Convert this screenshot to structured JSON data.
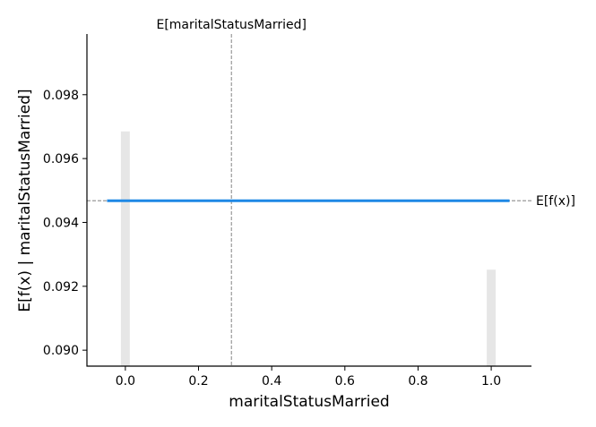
{
  "chart_data": {
    "type": "line",
    "title": "",
    "xlabel": "maritalStatusMarried",
    "ylabel": "E[f(x) | maritalStatusMarried]",
    "xlim": [
      -0.105,
      1.11
    ],
    "ylim": [
      0.0895,
      0.0999
    ],
    "x_ticks": [
      0.0,
      0.2,
      0.4,
      0.6,
      0.8,
      1.0
    ],
    "x_tick_labels": [
      "0.0",
      "0.2",
      "0.4",
      "0.6",
      "0.8",
      "1.0"
    ],
    "y_ticks": [
      0.09,
      0.092,
      0.094,
      0.096,
      0.098
    ],
    "y_tick_labels": [
      "0.090",
      "0.092",
      "0.094",
      "0.096",
      "0.098"
    ],
    "grid": false,
    "legend": "none",
    "series": [
      {
        "x": [
          -0.05,
          1.05
        ],
        "y": [
          0.09468,
          0.09468
        ],
        "color": "#1e88e5"
      }
    ],
    "histogram": {
      "x": [
        0.0,
        1.0
      ],
      "y": [
        0.09685,
        0.09252
      ],
      "color": "#e6e6e6"
    },
    "annotations": {
      "expected_x": {
        "value": 0.29,
        "label": "E[maritalStatusMarried]"
      },
      "expected_y": {
        "value": 0.09468,
        "label": "E[f(x)]"
      }
    }
  }
}
